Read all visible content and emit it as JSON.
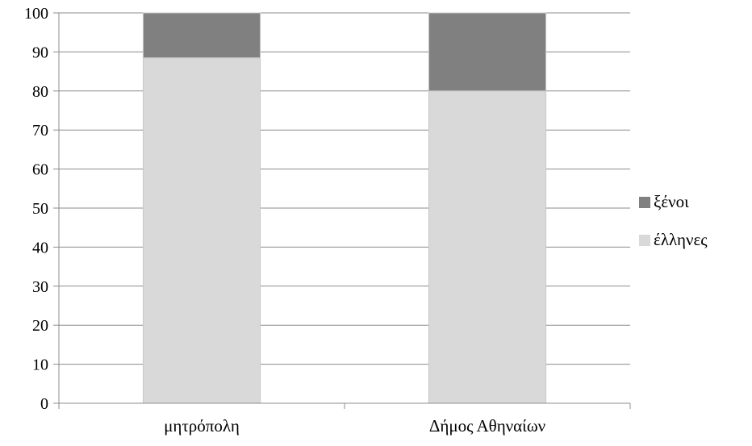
{
  "chart_data": {
    "type": "bar",
    "stacked": true,
    "title": "",
    "xlabel": "",
    "ylabel": "",
    "ylim": [
      0,
      100
    ],
    "yticks": [
      0,
      10,
      20,
      30,
      40,
      50,
      60,
      70,
      80,
      90,
      100
    ],
    "grid": "horizontal",
    "legend_position": "right",
    "categories": [
      "μητρόπολη",
      "Δήμος Αθηναίων"
    ],
    "series": [
      {
        "name": "έλληνες",
        "values": [
          88.5,
          80
        ],
        "color": "#d9d9d9"
      },
      {
        "name": "ξένοι",
        "values": [
          11.5,
          20
        ],
        "color": "#808080"
      }
    ],
    "legend_order": [
      "ξένοι",
      "έλληνες"
    ]
  }
}
